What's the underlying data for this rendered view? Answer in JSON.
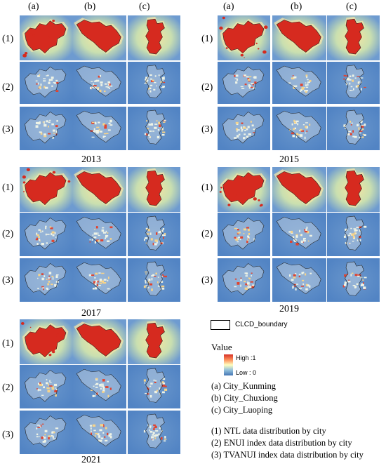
{
  "columns": [
    "(a)",
    "(b)",
    "(c)"
  ],
  "rows": [
    "(1)",
    "(2)",
    "(3)"
  ],
  "panels": [
    {
      "year": "2013"
    },
    {
      "year": "2015"
    },
    {
      "year": "2017"
    },
    {
      "year": "2019"
    },
    {
      "year": "2021"
    }
  ],
  "legend": {
    "boundary": "CLCD_boundary",
    "value_title": "Value",
    "high": "High :1",
    "low": "Low : 0",
    "cities": [
      "(a) City_Kunming",
      "(b) City_Chuxiong",
      "(c) City_Luoping"
    ],
    "rows": [
      "(1) NTL data distribution by city",
      "(2) ENUI index data distribution by city",
      "(3) TVANUI index data distribution by city"
    ]
  },
  "colors": {
    "high": "#d73027",
    "mid": "#ffffbf",
    "low": "#4575b4",
    "bg": "#5b8cc8"
  }
}
